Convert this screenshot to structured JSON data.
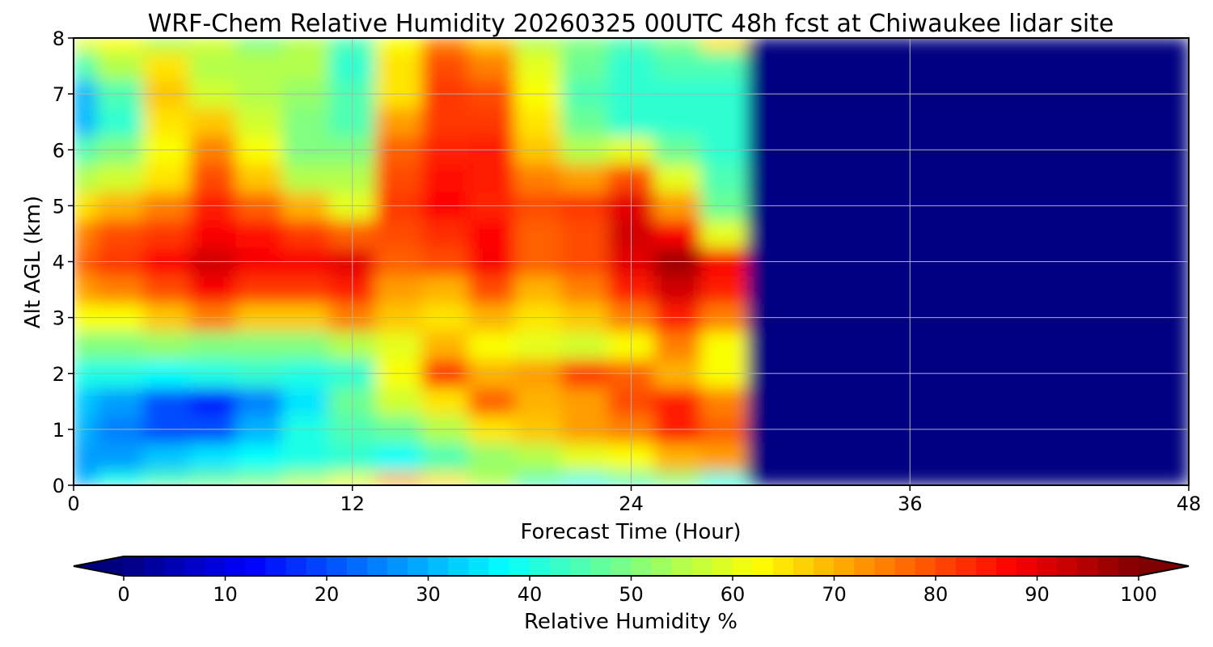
{
  "chart_data": {
    "type": "heatmap",
    "title": "WRF-Chem Relative Humidity 20260325 00UTC 48h fcst at Chiwaukee lidar site",
    "xlabel": "Forecast Time (Hour)",
    "ylabel": "Alt AGL (km)",
    "xlim": [
      0,
      48
    ],
    "ylim": [
      0,
      8
    ],
    "xticks": [
      "0",
      "12",
      "24",
      "36",
      "48"
    ],
    "yticks": [
      "0",
      "1",
      "2",
      "3",
      "4",
      "5",
      "6",
      "7",
      "8"
    ],
    "grid": true,
    "colorbar": {
      "label": "Relative Humidity %",
      "range": [
        0,
        100
      ],
      "ticks": [
        "0",
        "10",
        "20",
        "30",
        "40",
        "50",
        "60",
        "70",
        "80",
        "90",
        "100"
      ],
      "colormap": "jet",
      "extend": "both"
    },
    "x": [
      0,
      2,
      4,
      6,
      8,
      10,
      12,
      14,
      16,
      18,
      20,
      22,
      24,
      26,
      28,
      30,
      32,
      34,
      36,
      38,
      40,
      42,
      44,
      46,
      48
    ],
    "y": [
      0,
      0.5,
      1,
      1.5,
      2,
      2.5,
      3,
      3.5,
      4,
      4.5,
      5,
      5.5,
      6,
      6.5,
      7,
      7.5,
      8
    ],
    "z": [
      [
        30,
        40,
        45,
        48,
        50,
        55,
        60,
        70,
        65,
        55,
        45,
        40,
        45,
        50,
        40,
        0,
        0,
        0,
        0,
        0,
        0,
        0,
        0,
        0,
        0
      ],
      [
        28,
        28,
        32,
        35,
        38,
        40,
        42,
        38,
        45,
        52,
        55,
        60,
        62,
        70,
        72,
        0,
        0,
        0,
        0,
        0,
        0,
        0,
        0,
        0,
        0
      ],
      [
        30,
        25,
        20,
        20,
        30,
        40,
        45,
        48,
        55,
        65,
        68,
        72,
        75,
        85,
        78,
        0,
        0,
        0,
        0,
        0,
        0,
        0,
        0,
        0,
        0
      ],
      [
        32,
        28,
        20,
        15,
        25,
        35,
        48,
        58,
        65,
        78,
        70,
        72,
        80,
        85,
        75,
        0,
        0,
        0,
        0,
        0,
        0,
        0,
        0,
        0,
        0
      ],
      [
        40,
        40,
        38,
        40,
        42,
        40,
        42,
        62,
        82,
        70,
        72,
        82,
        78,
        70,
        62,
        0,
        0,
        0,
        0,
        0,
        0,
        0,
        0,
        0,
        0
      ],
      [
        50,
        50,
        52,
        50,
        50,
        50,
        55,
        60,
        70,
        62,
        60,
        58,
        62,
        75,
        62,
        0,
        0,
        0,
        0,
        0,
        0,
        0,
        0,
        0,
        0
      ],
      [
        62,
        62,
        68,
        75,
        68,
        68,
        75,
        68,
        65,
        70,
        65,
        68,
        75,
        85,
        75,
        0,
        0,
        0,
        0,
        0,
        0,
        0,
        0,
        0,
        0
      ],
      [
        72,
        75,
        80,
        88,
        82,
        82,
        85,
        72,
        70,
        80,
        70,
        75,
        85,
        92,
        85,
        0,
        0,
        0,
        0,
        0,
        0,
        0,
        0,
        0,
        0
      ],
      [
        78,
        82,
        87,
        92,
        88,
        88,
        90,
        78,
        80,
        88,
        78,
        80,
        90,
        97,
        88,
        0,
        0,
        0,
        0,
        0,
        0,
        0,
        0,
        0,
        0
      ],
      [
        75,
        80,
        82,
        88,
        86,
        82,
        78,
        80,
        83,
        87,
        78,
        80,
        92,
        88,
        60,
        0,
        0,
        0,
        0,
        0,
        0,
        0,
        0,
        0,
        0
      ],
      [
        65,
        70,
        75,
        85,
        78,
        70,
        60,
        82,
        87,
        84,
        80,
        82,
        90,
        72,
        48,
        0,
        0,
        0,
        0,
        0,
        0,
        0,
        0,
        0,
        0
      ],
      [
        55,
        58,
        65,
        80,
        68,
        55,
        55,
        80,
        86,
        85,
        75,
        72,
        80,
        60,
        45,
        0,
        0,
        0,
        0,
        0,
        0,
        0,
        0,
        0,
        0
      ],
      [
        45,
        50,
        62,
        75,
        62,
        50,
        50,
        78,
        84,
        85,
        68,
        55,
        60,
        48,
        42,
        0,
        0,
        0,
        0,
        0,
        0,
        0,
        0,
        0,
        0
      ],
      [
        30,
        42,
        65,
        68,
        58,
        50,
        45,
        72,
        82,
        82,
        65,
        48,
        42,
        42,
        42,
        0,
        0,
        0,
        0,
        0,
        0,
        0,
        0,
        0,
        0
      ],
      [
        30,
        45,
        68,
        58,
        55,
        52,
        45,
        65,
        82,
        80,
        62,
        45,
        42,
        42,
        42,
        0,
        0,
        0,
        0,
        0,
        0,
        0,
        0,
        0,
        0
      ],
      [
        45,
        55,
        65,
        55,
        55,
        55,
        42,
        65,
        80,
        75,
        60,
        48,
        42,
        45,
        45,
        0,
        0,
        0,
        0,
        0,
        0,
        0,
        0,
        0,
        0
      ],
      [
        60,
        62,
        55,
        58,
        50,
        55,
        45,
        62,
        75,
        68,
        55,
        50,
        45,
        50,
        65,
        0,
        0,
        0,
        0,
        0,
        0,
        0,
        0,
        0,
        0
      ]
    ]
  }
}
